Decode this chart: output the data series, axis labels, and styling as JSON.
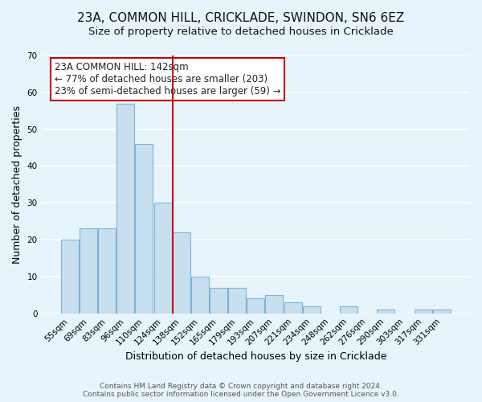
{
  "title": "23A, COMMON HILL, CRICKLADE, SWINDON, SN6 6EZ",
  "subtitle": "Size of property relative to detached houses in Cricklade",
  "xlabel": "Distribution of detached houses by size in Cricklade",
  "ylabel": "Number of detached properties",
  "bar_labels": [
    "55sqm",
    "69sqm",
    "83sqm",
    "96sqm",
    "110sqm",
    "124sqm",
    "138sqm",
    "152sqm",
    "165sqm",
    "179sqm",
    "193sqm",
    "207sqm",
    "221sqm",
    "234sqm",
    "248sqm",
    "262sqm",
    "276sqm",
    "290sqm",
    "303sqm",
    "317sqm",
    "331sqm"
  ],
  "bar_heights": [
    20,
    23,
    23,
    57,
    46,
    30,
    22,
    10,
    7,
    7,
    4,
    5,
    3,
    2,
    0,
    2,
    0,
    1,
    0,
    1,
    1
  ],
  "bar_color": "#c8dff0",
  "bar_edgecolor": "#7ab4d8",
  "vline_color": "#cc0000",
  "vline_index": 6,
  "ylim": [
    0,
    70
  ],
  "yticks": [
    0,
    10,
    20,
    30,
    40,
    50,
    60,
    70
  ],
  "annotation_title": "23A COMMON HILL: 142sqm",
  "annotation_line1": "← 77% of detached houses are smaller (203)",
  "annotation_line2": "23% of semi-detached houses are larger (59) →",
  "annotation_box_color": "#ffffff",
  "annotation_box_edgecolor": "#cc0000",
  "footer_line1": "Contains HM Land Registry data © Crown copyright and database right 2024.",
  "footer_line2": "Contains public sector information licensed under the Open Government Licence v3.0.",
  "background_color": "#e8f4fb",
  "grid_color": "#ffffff",
  "title_fontsize": 11,
  "subtitle_fontsize": 9.5,
  "ylabel_fontsize": 9,
  "xlabel_fontsize": 9,
  "tick_fontsize": 7.5,
  "annotation_fontsize": 8.5,
  "footer_fontsize": 6.5
}
